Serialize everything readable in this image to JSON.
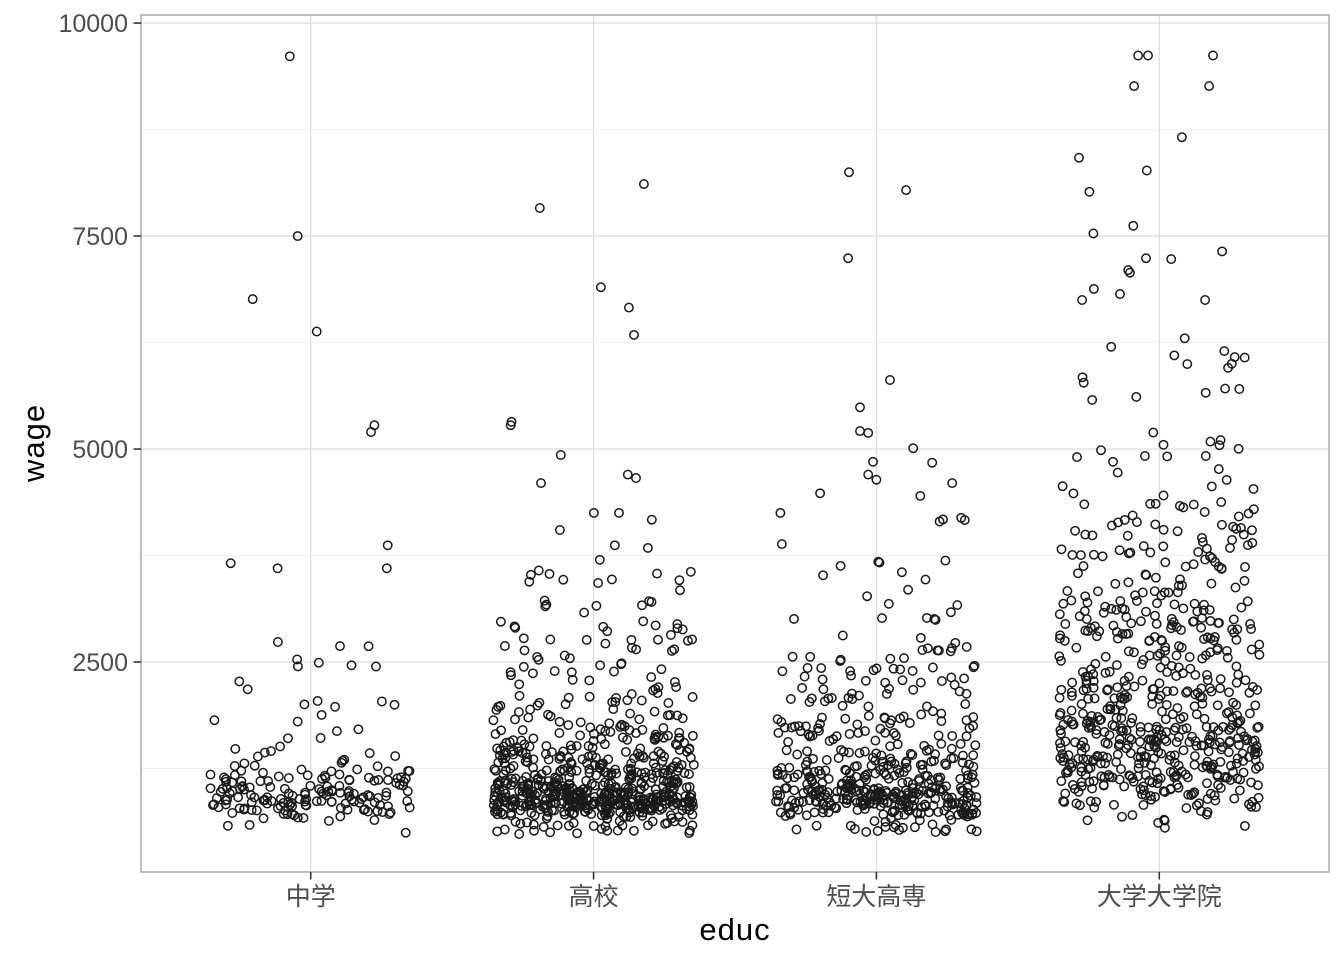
{
  "figure": {
    "background": "#ffffff"
  },
  "chart_data": {
    "type": "scatter",
    "variant": "jittered-strip-plot",
    "title": "",
    "xlabel": "educ",
    "ylabel": "wage",
    "categories": [
      "中学",
      "高校",
      "短大高専",
      "大学大学院"
    ],
    "y_ticks": [
      2500,
      5000,
      7500,
      10000
    ],
    "y_minor_ticks": [
      1250,
      3750,
      6250,
      8750
    ],
    "ylim": [
      35,
      10095
    ],
    "x_expand": 0.6,
    "grid": true,
    "legend": "none",
    "jitter_halfwidth": 0.355,
    "point_style": {
      "shape": "open-circle",
      "radius": 4.2,
      "stroke": "#1a1a1a",
      "stroke_width": 1.5,
      "fill": "none"
    },
    "colors": {
      "panel_bg": "#ffffff",
      "grid_major": "#dedede",
      "grid_minor": "#efefef",
      "panel_border": "#a8a8a8",
      "tick": "#333333",
      "tick_label": "#4d4d4d",
      "axis_title": "#000000"
    },
    "groups": [
      {
        "category": "中学",
        "seed": 101,
        "n_cloud": 185,
        "cloud_quantiles": [
          [
            0,
            480
          ],
          [
            0.06,
            700
          ],
          [
            0.18,
            800
          ],
          [
            0.35,
            900
          ],
          [
            0.5,
            1000
          ],
          [
            0.62,
            1130
          ],
          [
            0.72,
            1320
          ],
          [
            0.8,
            1550
          ],
          [
            0.86,
            1800
          ],
          [
            0.91,
            2100
          ],
          [
            0.95,
            2450
          ],
          [
            0.98,
            2750
          ],
          [
            1,
            3150
          ]
        ],
        "labeled_points": [
          [
            -0.074,
            9610
          ],
          [
            -0.046,
            7500
          ],
          [
            -0.205,
            6760
          ],
          [
            0.021,
            6380
          ],
          [
            0.225,
            5280
          ],
          [
            0.213,
            5200
          ],
          [
            0.272,
            3870
          ],
          [
            0.269,
            3600
          ],
          [
            -0.283,
            3660
          ],
          [
            -0.117,
            3600
          ]
        ]
      },
      {
        "category": "高校",
        "seed": 202,
        "n_cloud": 670,
        "cloud_quantiles": [
          [
            0,
            480
          ],
          [
            0.05,
            680
          ],
          [
            0.15,
            800
          ],
          [
            0.3,
            880
          ],
          [
            0.45,
            980
          ],
          [
            0.57,
            1100
          ],
          [
            0.67,
            1280
          ],
          [
            0.75,
            1500
          ],
          [
            0.82,
            1780
          ],
          [
            0.88,
            2100
          ],
          [
            0.92,
            2400
          ],
          [
            0.95,
            2750
          ],
          [
            0.975,
            3100
          ],
          [
            0.99,
            3350
          ],
          [
            1,
            3600
          ]
        ],
        "labeled_points": [
          [
            0.178,
            8110
          ],
          [
            -0.19,
            7830
          ],
          [
            0.026,
            6900
          ],
          [
            0.125,
            6660
          ],
          [
            0.143,
            6340
          ],
          [
            -0.29,
            5320
          ],
          [
            -0.293,
            5280
          ],
          [
            -0.116,
            4930
          ],
          [
            0.121,
            4700
          ],
          [
            0.15,
            4660
          ],
          [
            -0.186,
            4600
          ],
          [
            0.001,
            4250
          ],
          [
            0.09,
            4250
          ],
          [
            0.206,
            4170
          ],
          [
            -0.119,
            4050
          ],
          [
            0.075,
            3870
          ],
          [
            0.192,
            3840
          ],
          [
            0.022,
            3700
          ]
        ]
      },
      {
        "category": "短大高専",
        "seed": 303,
        "n_cloud": 470,
        "cloud_quantiles": [
          [
            0,
            500
          ],
          [
            0.05,
            700
          ],
          [
            0.15,
            820
          ],
          [
            0.3,
            920
          ],
          [
            0.45,
            1030
          ],
          [
            0.57,
            1170
          ],
          [
            0.67,
            1350
          ],
          [
            0.75,
            1580
          ],
          [
            0.82,
            1850
          ],
          [
            0.88,
            2180
          ],
          [
            0.92,
            2500
          ],
          [
            0.95,
            2850
          ],
          [
            0.975,
            3200
          ],
          [
            0.985,
            3600
          ],
          [
            1,
            4400
          ]
        ],
        "labeled_points": [
          [
            -0.097,
            8250
          ],
          [
            0.105,
            8040
          ],
          [
            -0.1,
            7240
          ],
          [
            0.048,
            5810
          ],
          [
            -0.058,
            5490
          ],
          [
            -0.058,
            5210
          ],
          [
            -0.029,
            5190
          ],
          [
            0.13,
            5010
          ],
          [
            -0.012,
            4850
          ],
          [
            0.197,
            4840
          ],
          [
            -0.029,
            4700
          ],
          [
            0.0,
            4640
          ],
          [
            0.268,
            4600
          ],
          [
            -0.199,
            4480
          ],
          [
            0.155,
            4450
          ]
        ]
      },
      {
        "category": "大学大学院",
        "seed": 404,
        "n_cloud": 620,
        "cloud_quantiles": [
          [
            0,
            550
          ],
          [
            0.04,
            800
          ],
          [
            0.1,
            1000
          ],
          [
            0.2,
            1200
          ],
          [
            0.32,
            1450
          ],
          [
            0.45,
            1750
          ],
          [
            0.55,
            2000
          ],
          [
            0.65,
            2300
          ],
          [
            0.73,
            2650
          ],
          [
            0.8,
            3000
          ],
          [
            0.86,
            3400
          ],
          [
            0.9,
            3750
          ],
          [
            0.935,
            4100
          ],
          [
            0.955,
            4400
          ],
          [
            0.97,
            4800
          ],
          [
            0.985,
            5300
          ],
          [
            1,
            6100
          ]
        ],
        "labeled_points": [
          [
            -0.075,
            9620
          ],
          [
            -0.04,
            9620
          ],
          [
            0.19,
            9620
          ],
          [
            -0.089,
            9260
          ],
          [
            0.176,
            9260
          ],
          [
            0.08,
            8660
          ],
          [
            -0.284,
            8420
          ],
          [
            -0.044,
            8270
          ],
          [
            -0.247,
            8020
          ],
          [
            -0.092,
            7620
          ],
          [
            -0.233,
            7530
          ],
          [
            0.222,
            7320
          ],
          [
            -0.047,
            7240
          ],
          [
            0.042,
            7230
          ],
          [
            -0.11,
            7100
          ],
          [
            -0.104,
            7070
          ],
          [
            -0.231,
            6880
          ],
          [
            -0.139,
            6820
          ],
          [
            -0.273,
            6750
          ],
          [
            0.162,
            6750
          ],
          [
            0.09,
            6300
          ],
          [
            -0.17,
            6200
          ],
          [
            0.23,
            6150
          ]
        ]
      }
    ]
  }
}
